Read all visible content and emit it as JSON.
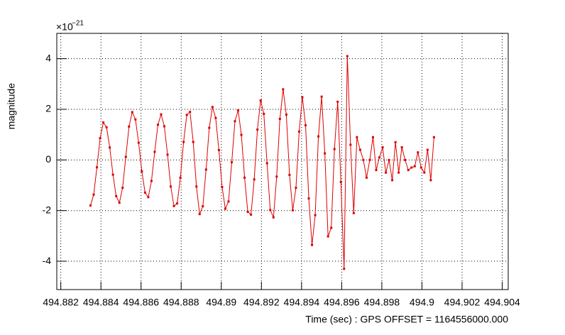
{
  "chart_data": {
    "type": "line",
    "y_axis_label": "magnitude",
    "y_scale_base": "×10",
    "y_scale_exponent": "−21",
    "x_axis_label": "Time (sec) : GPS OFFSET = 1164556000.000",
    "x": [
      494.88348,
      494.88364,
      494.8838,
      494.88396,
      494.88412,
      494.88428,
      494.88444,
      494.8846,
      494.88476,
      494.88492,
      494.88508,
      494.88524,
      494.8854,
      494.88556,
      494.88572,
      494.88588,
      494.88604,
      494.8862,
      494.88636,
      494.88652,
      494.88668,
      494.88684,
      494.887,
      494.88716,
      494.88732,
      494.88748,
      494.88764,
      494.8878,
      494.88796,
      494.88812,
      494.88828,
      494.88844,
      494.8886,
      494.88876,
      494.88892,
      494.88908,
      494.88924,
      494.8894,
      494.88956,
      494.88972,
      494.88988,
      494.89004,
      494.8902,
      494.89036,
      494.89052,
      494.89068,
      494.89084,
      494.891,
      494.89116,
      494.89132,
      494.89148,
      494.89164,
      494.8918,
      494.89196,
      494.89212,
      494.89228,
      494.89244,
      494.8926,
      494.89276,
      494.89292,
      494.89308,
      494.89324,
      494.8934,
      494.89356,
      494.89372,
      494.89388,
      494.89404,
      494.8942,
      494.89436,
      494.89452,
      494.89468,
      494.89484,
      494.895,
      494.89516,
      494.89532,
      494.89548,
      494.89564,
      494.8958,
      494.89596,
      494.89612,
      494.89628,
      494.89644,
      494.8966,
      494.89676,
      494.89692,
      494.89708,
      494.89724,
      494.8974,
      494.89756,
      494.89772,
      494.89788,
      494.89804,
      494.8982,
      494.89836,
      494.89852,
      494.89868,
      494.89884,
      494.899,
      494.89916,
      494.89932,
      494.89948,
      494.89964,
      494.8998,
      494.89996,
      494.90012,
      494.90028,
      494.90044,
      494.9006
    ],
    "series": [
      {
        "color": "#dd0000",
        "values": [
          -1.8,
          -1.37,
          -0.29,
          0.86,
          1.48,
          1.29,
          0.49,
          -0.58,
          -1.43,
          -1.69,
          -1.1,
          0.12,
          1.32,
          1.89,
          1.6,
          0.68,
          -0.45,
          -1.29,
          -1.47,
          -0.83,
          0.32,
          1.39,
          1.8,
          1.33,
          0.21,
          -1.05,
          -1.82,
          -1.72,
          -0.7,
          0.71,
          1.78,
          1.9,
          0.71,
          -1.05,
          -2.14,
          -1.83,
          -0.38,
          1.27,
          2.09,
          1.66,
          0.39,
          -1.07,
          -1.93,
          -1.64,
          -0.09,
          1.53,
          1.96,
          0.99,
          -0.7,
          -2.05,
          -2.16,
          -0.77,
          1.2,
          2.35,
          1.82,
          -0.13,
          -1.98,
          -2.27,
          -0.66,
          1.62,
          2.79,
          1.79,
          -0.59,
          -1.99,
          -1.1,
          1.12,
          2.48,
          1.37,
          -1.52,
          -3.36,
          -2.18,
          0.93,
          2.5,
          0.26,
          -3.02,
          -2.68,
          0.43,
          2.3,
          -0.87,
          -4.3,
          4.1,
          0.6,
          -2.1,
          0.9,
          0.4,
          0.0,
          -0.7,
          0.0,
          0.9,
          -0.4,
          0.1,
          0.5,
          -0.5,
          0.0,
          -0.8,
          0.7,
          -0.5,
          0.5,
          0.0,
          -0.4,
          -0.3,
          -0.25,
          0.3,
          -0.3,
          -0.5,
          0.4,
          -0.8,
          0.9
        ]
      }
    ],
    "xlim": [
      494.8818,
      494.9043
    ],
    "xticks": [
      494.882,
      494.884,
      494.886,
      494.888,
      494.89,
      494.892,
      494.894,
      494.896,
      494.898,
      494.9,
      494.902,
      494.904
    ],
    "ylim": [
      -5.12,
      5
    ],
    "yticks": [
      -4,
      -2,
      0,
      2,
      4
    ],
    "grid": true
  }
}
